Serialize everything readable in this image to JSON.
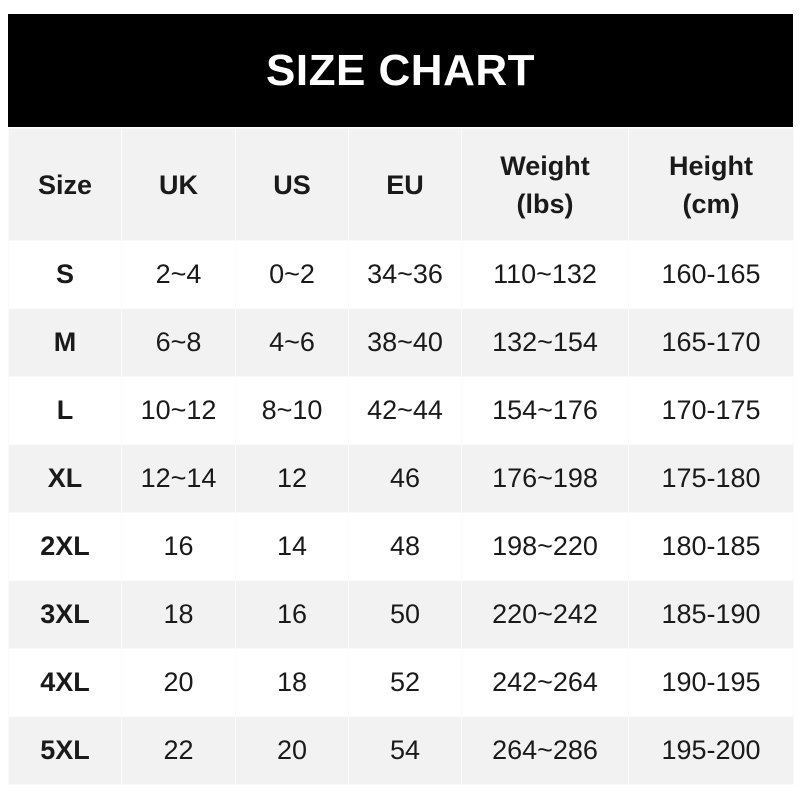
{
  "title": "SIZE CHART",
  "chart_data": {
    "type": "table",
    "title": "SIZE CHART",
    "columns": [
      "Size",
      "UK",
      "US",
      "EU",
      "Weight (lbs)",
      "Height (cm)"
    ],
    "headers": [
      {
        "line1": "Size",
        "line2": ""
      },
      {
        "line1": "UK",
        "line2": ""
      },
      {
        "line1": "US",
        "line2": ""
      },
      {
        "line1": "EU",
        "line2": ""
      },
      {
        "line1": "Weight",
        "line2": "(lbs)"
      },
      {
        "line1": "Height",
        "line2": "(cm)"
      }
    ],
    "rows": [
      [
        "S",
        "2~4",
        "0~2",
        "34~36",
        "110~132",
        "160-165"
      ],
      [
        "M",
        "6~8",
        "4~6",
        "38~40",
        "132~154",
        "165-170"
      ],
      [
        "L",
        "10~12",
        "8~10",
        "42~44",
        "154~176",
        "170-175"
      ],
      [
        "XL",
        "12~14",
        "12",
        "46",
        "176~198",
        "175-180"
      ],
      [
        "2XL",
        "16",
        "14",
        "48",
        "198~220",
        "180-185"
      ],
      [
        "3XL",
        "18",
        "16",
        "50",
        "220~242",
        "185-190"
      ],
      [
        "4XL",
        "20",
        "18",
        "52",
        "242~264",
        "190-195"
      ],
      [
        "5XL",
        "22",
        "20",
        "54",
        "264~286",
        "195-200"
      ]
    ]
  },
  "colors": {
    "title_bg": "#000000",
    "title_text": "#ffffff",
    "alt_row": "#f2f2f2",
    "text": "#1a1a1a"
  }
}
